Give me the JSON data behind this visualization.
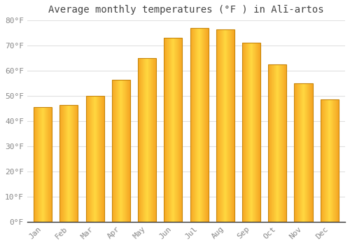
{
  "title": "Average monthly temperatures (°F ) in Alī-artos",
  "months": [
    "Jan",
    "Feb",
    "Mar",
    "Apr",
    "May",
    "Jun",
    "Jul",
    "Aug",
    "Sep",
    "Oct",
    "Nov",
    "Dec"
  ],
  "values": [
    45.5,
    46.5,
    50.0,
    56.5,
    65.0,
    73.0,
    77.0,
    76.5,
    71.0,
    62.5,
    55.0,
    48.5
  ],
  "bar_color_center": "#FFD740",
  "bar_color_edge": "#F5A623",
  "bar_border_color": "#C8860A",
  "ylim": [
    0,
    80
  ],
  "yticks": [
    0,
    10,
    20,
    30,
    40,
    50,
    60,
    70,
    80
  ],
  "ytick_labels": [
    "0°F",
    "10°F",
    "20°F",
    "30°F",
    "40°F",
    "50°F",
    "60°F",
    "70°F",
    "80°F"
  ],
  "background_color": "#FFFFFF",
  "plot_bg_color": "#FFFFFF",
  "grid_color": "#E0E0E0",
  "title_fontsize": 10,
  "tick_fontsize": 8,
  "title_color": "#444444",
  "tick_color": "#888888"
}
